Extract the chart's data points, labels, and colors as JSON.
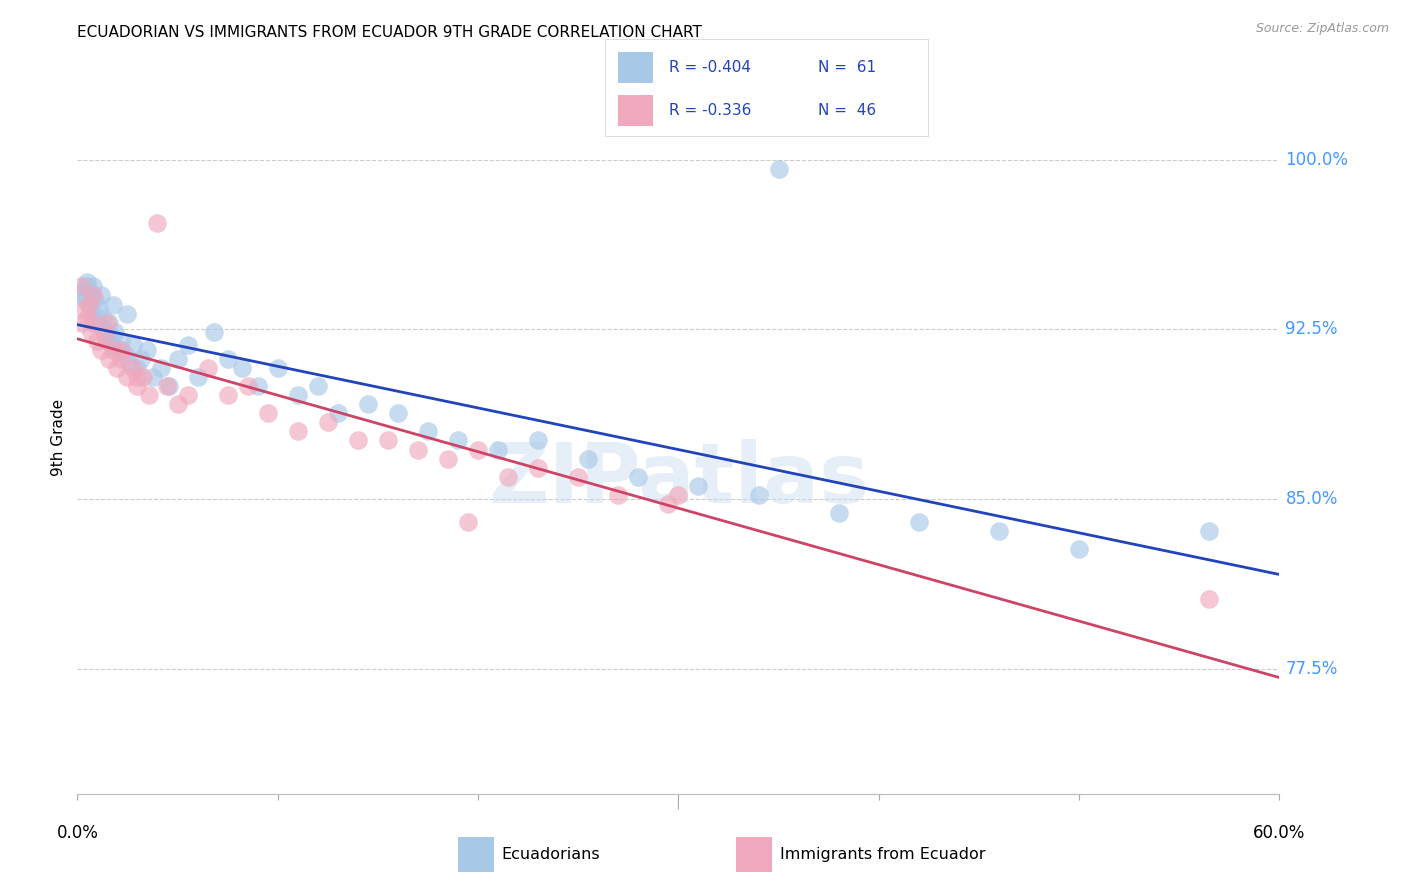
{
  "title": "ECUADORIAN VS IMMIGRANTS FROM ECUADOR 9TH GRADE CORRELATION CHART",
  "source": "Source: ZipAtlas.com",
  "ylabel": "9th Grade",
  "watermark": "ZIPatlas",
  "legend_r1": "R = -0.404",
  "legend_n1": "N =  61",
  "legend_r2": "R = -0.336",
  "legend_n2": "N =  46",
  "blue_color": "#A8C8E8",
  "pink_color": "#F0A8BC",
  "trend_blue": "#2244BB",
  "trend_pink": "#CC4466",
  "label_color": "#4499FF",
  "xlim": [
    0.0,
    0.6
  ],
  "ylim": [
    0.72,
    1.035
  ],
  "yticks": [
    0.775,
    0.85,
    0.925,
    1.0
  ],
  "ytick_labels": [
    "77.5%",
    "85.0%",
    "92.5%",
    "100.0%"
  ],
  "blue_x": [
    0.002,
    0.003,
    0.004,
    0.005,
    0.006,
    0.007,
    0.008,
    0.009,
    0.01,
    0.011,
    0.012,
    0.013,
    0.014,
    0.015,
    0.016,
    0.017,
    0.018,
    0.019,
    0.02,
    0.022,
    0.024,
    0.026,
    0.028,
    0.03,
    0.032,
    0.035,
    0.038,
    0.042,
    0.046,
    0.05,
    0.055,
    0.06,
    0.068,
    0.075,
    0.082,
    0.09,
    0.1,
    0.11,
    0.12,
    0.13,
    0.145,
    0.16,
    0.175,
    0.19,
    0.21,
    0.23,
    0.255,
    0.28,
    0.31,
    0.34,
    0.38,
    0.42,
    0.46,
    0.5,
    0.005,
    0.008,
    0.012,
    0.018,
    0.025,
    0.35,
    0.565
  ],
  "blue_y": [
    0.94,
    0.942,
    0.938,
    0.944,
    0.936,
    0.94,
    0.932,
    0.938,
    0.928,
    0.934,
    0.926,
    0.93,
    0.924,
    0.92,
    0.928,
    0.922,
    0.918,
    0.924,
    0.916,
    0.92,
    0.914,
    0.91,
    0.918,
    0.908,
    0.912,
    0.916,
    0.904,
    0.908,
    0.9,
    0.912,
    0.918,
    0.904,
    0.924,
    0.912,
    0.908,
    0.9,
    0.908,
    0.896,
    0.9,
    0.888,
    0.892,
    0.888,
    0.88,
    0.876,
    0.872,
    0.876,
    0.868,
    0.86,
    0.856,
    0.852,
    0.844,
    0.84,
    0.836,
    0.828,
    0.946,
    0.944,
    0.94,
    0.936,
    0.932,
    0.996,
    0.836
  ],
  "pink_x": [
    0.002,
    0.004,
    0.005,
    0.006,
    0.007,
    0.008,
    0.01,
    0.012,
    0.014,
    0.016,
    0.018,
    0.02,
    0.022,
    0.025,
    0.028,
    0.03,
    0.033,
    0.036,
    0.04,
    0.045,
    0.05,
    0.055,
    0.065,
    0.075,
    0.085,
    0.095,
    0.11,
    0.125,
    0.14,
    0.155,
    0.17,
    0.185,
    0.2,
    0.215,
    0.23,
    0.25,
    0.27,
    0.295,
    0.002,
    0.008,
    0.015,
    0.022,
    0.03,
    0.195,
    0.3,
    0.565
  ],
  "pink_y": [
    0.928,
    0.934,
    0.93,
    0.936,
    0.924,
    0.928,
    0.92,
    0.916,
    0.922,
    0.912,
    0.916,
    0.908,
    0.912,
    0.904,
    0.908,
    0.9,
    0.904,
    0.896,
    0.972,
    0.9,
    0.892,
    0.896,
    0.908,
    0.896,
    0.9,
    0.888,
    0.88,
    0.884,
    0.876,
    0.876,
    0.872,
    0.868,
    0.872,
    0.86,
    0.864,
    0.86,
    0.852,
    0.848,
    0.944,
    0.94,
    0.928,
    0.916,
    0.904,
    0.84,
    0.852,
    0.806
  ]
}
